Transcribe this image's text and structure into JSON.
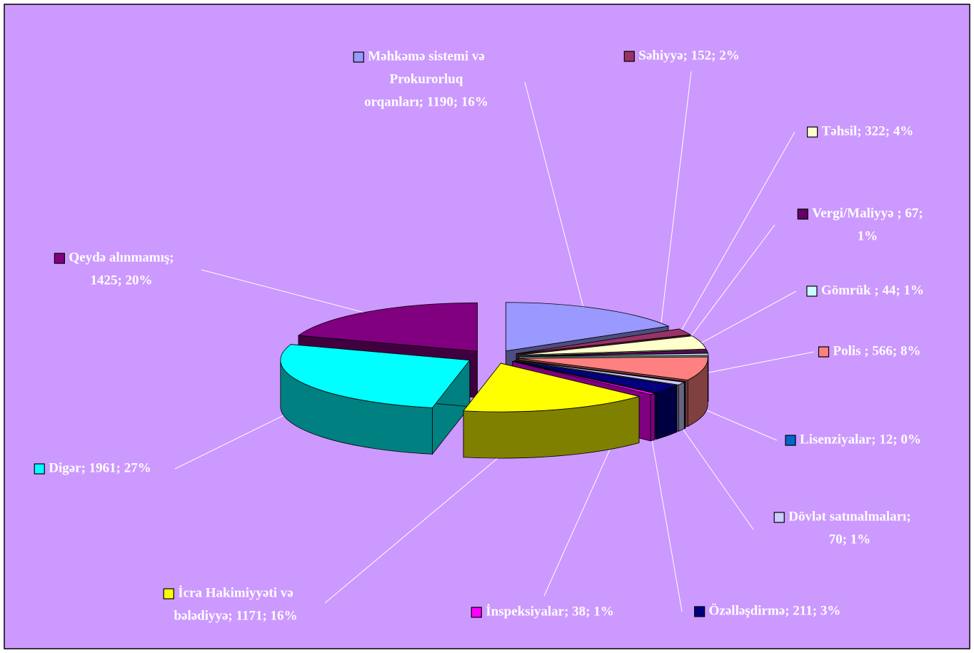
{
  "chart_data": {
    "type": "pie3d",
    "labels": [
      [
        "Məhkəmə sistemi və",
        "Prokurorluq",
        "orqanları; 1190; 16%"
      ],
      [
        "Səhiyyə; 152; 2%"
      ],
      [
        "Təhsil; 322; 4%"
      ],
      [
        "Vergi/Maliyyə ; 67;",
        "1%"
      ],
      [
        "Gömrük ; 44; 1%"
      ],
      [
        "Polis ; 566; 8%"
      ],
      [
        "Lisenziyalar; 12; 0%"
      ],
      [
        "Dövlət satınalmaları;",
        "70; 1%"
      ],
      [
        "Özəlləşdirmə; 211; 3%"
      ],
      [
        "İnspeksiyalar; 38; 1%"
      ],
      [
        "İcra Hakimiyyəti və",
        "bələdiyyə; 1171; 16%"
      ],
      [
        "Digər; 1961; 27%"
      ],
      [
        "Qeydə alınmamış;",
        "1425; 20%"
      ]
    ],
    "values": [
      1190,
      152,
      322,
      67,
      44,
      566,
      12,
      70,
      211,
      38,
      1171,
      1961,
      1425
    ],
    "colors": [
      "#9999ff",
      "#993366",
      "#ffffcc",
      "#660066",
      "#ccffff",
      "#ff8080",
      "#0066cc",
      "#ccccff",
      "#000080",
      "#ff00ff",
      "#ffff00",
      "#00ffff",
      "#800080"
    ],
    "background": "#cc99ff"
  }
}
